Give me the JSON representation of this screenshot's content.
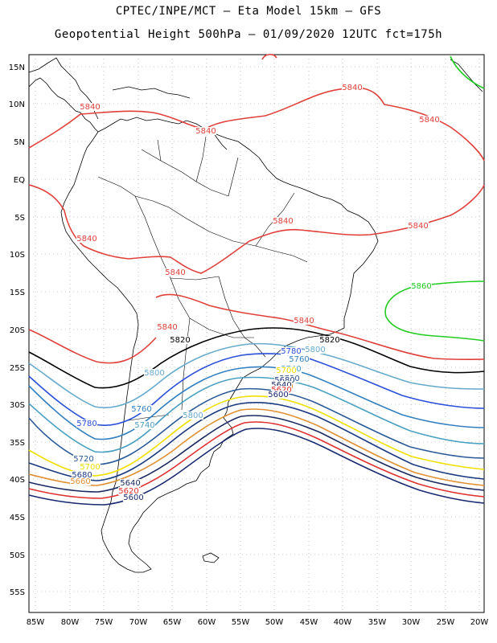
{
  "title_line1": "CPTEC/INPE/MCT –  Eta Model 15km – GFS",
  "title_line2": "Geopotential Height 500hPa – 01/09/2020 12UTC fct=175h",
  "lat_labels": [
    "15N",
    "10N",
    "5N",
    "EQ",
    "5S",
    "10S",
    "15S",
    "20S",
    "25S",
    "30S",
    "35S",
    "40S",
    "45S",
    "50S",
    "55S"
  ],
  "lon_labels": [
    "85W",
    "80W",
    "75W",
    "70W",
    "65W",
    "60W",
    "55W",
    "50W",
    "45W",
    "40W",
    "35W",
    "30W",
    "25W",
    "20W"
  ],
  "contours": [
    {
      "label": "5840",
      "color": "#e0403a",
      "labels": [
        "5840",
        "5840",
        "5840",
        "5840",
        "5840",
        "5840",
        "5840",
        "5840",
        "5840",
        "5840"
      ]
    },
    {
      "label": "5860",
      "color": "#22cc22",
      "labels": [
        "5860"
      ]
    },
    {
      "label": "5820",
      "color": "#000000",
      "labels": [
        "5820",
        "5820"
      ]
    },
    {
      "label": "5800",
      "color": "#66aacc",
      "labels": [
        "5800",
        "5800",
        "5800"
      ]
    },
    {
      "label": "5780",
      "color": "#2a4fd8",
      "labels": [
        "5780",
        "5780"
      ]
    },
    {
      "label": "5760",
      "color": "#3380c0",
      "labels": [
        "5760",
        "5760"
      ]
    },
    {
      "label": "5740",
      "color": "#4aa0c0",
      "labels": [
        "5740",
        "5740"
      ]
    },
    {
      "label": "5720",
      "color": "#2a5a98",
      "labels": [
        "5720",
        "5720"
      ]
    },
    {
      "label": "5700",
      "color": "#f0e000",
      "labels": [
        "5700",
        "5700"
      ]
    },
    {
      "label": "5680",
      "color": "#1a3a80",
      "labels": [
        "5680",
        "5680"
      ]
    },
    {
      "label": "5660",
      "color": "#e09030",
      "labels": [
        "5660",
        "5660"
      ]
    },
    {
      "label": "5640",
      "color": "#1a2a60",
      "labels": [
        "5640",
        "5640"
      ]
    },
    {
      "label": "5620",
      "color": "#e03030",
      "labels": [
        "5620",
        "5620"
      ]
    },
    {
      "label": "5600",
      "color": "#1a2a70",
      "labels": [
        "5600",
        "5600"
      ]
    }
  ]
}
